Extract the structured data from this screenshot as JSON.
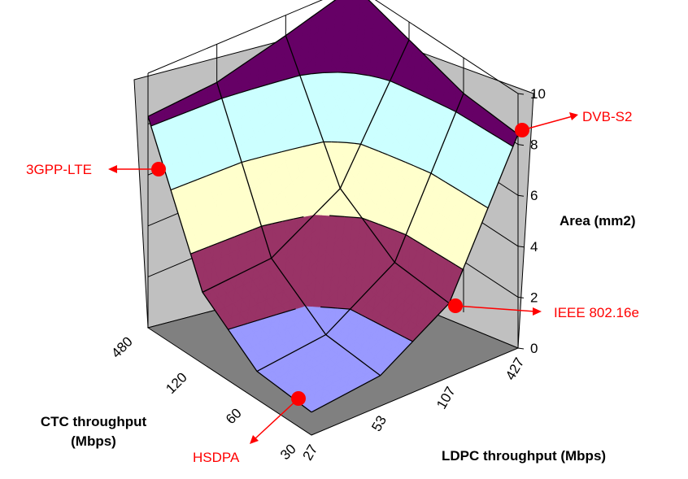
{
  "chart_data": {
    "type": "surface",
    "title": "",
    "x_axis": {
      "label_line1": "CTC throughput",
      "label_line2": "(Mbps)",
      "categories": [
        "30",
        "60",
        "120",
        "480"
      ]
    },
    "y_axis": {
      "label": "LDPC throughput (Mbps)",
      "categories": [
        "27",
        "53",
        "107",
        "427"
      ]
    },
    "z_axis": {
      "label": "Area (mm2)",
      "ticks": [
        "0",
        "2",
        "4",
        "6",
        "8",
        "10"
      ],
      "zlim": [
        0,
        10
      ]
    },
    "z_bands": [
      {
        "range": [
          0,
          2
        ],
        "color": "#9999ff"
      },
      {
        "range": [
          2,
          4
        ],
        "color": "#993366"
      },
      {
        "range": [
          4,
          6
        ],
        "color": "#ffffcc"
      },
      {
        "range": [
          6,
          8
        ],
        "color": "#ccffff"
      },
      {
        "range": [
          8,
          10
        ],
        "color": "#660066"
      }
    ],
    "values": [
      [
        0.9,
        1.2,
        2.9,
        8.4
      ],
      [
        1.1,
        1.4,
        3.1,
        8.6
      ],
      [
        2.8,
        3.0,
        4.6,
        9.3
      ],
      [
        8.3,
        8.5,
        9.2,
        10.0
      ]
    ],
    "values_note_rows": "rows follow x_axis.categories; columns follow y_axis.categories",
    "annotations": [
      {
        "text": "3GPP-LTE"
      },
      {
        "text": "DVB-S2"
      },
      {
        "text": "IEEE 802.16e"
      },
      {
        "text": "HSDPA"
      }
    ],
    "marker_color": "#ff0000"
  }
}
